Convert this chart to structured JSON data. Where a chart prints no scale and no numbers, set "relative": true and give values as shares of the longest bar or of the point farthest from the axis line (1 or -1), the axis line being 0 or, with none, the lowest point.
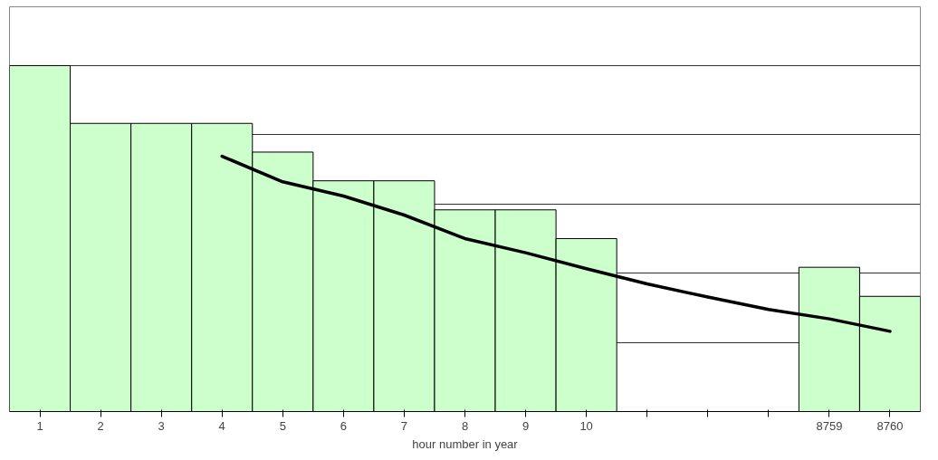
{
  "chart_data": {
    "type": "bar",
    "relative": true,
    "xlabel": "hour number in year",
    "categories": [
      "1",
      "2",
      "3",
      "4",
      "5",
      "6",
      "7",
      "8",
      "9",
      "10",
      null,
      null,
      null,
      "8759",
      "8760"
    ],
    "series": [
      {
        "color": "#ccffcc",
        "values": [
          1,
          0.833,
          0.833,
          0.833,
          0.75,
          0.667,
          0.667,
          0.583,
          0.583,
          0.5,
          null,
          null,
          null,
          0.417,
          0.333
        ]
      },
      {
        "type": "line",
        "color": "#000000",
        "values": [
          null,
          null,
          null,
          0.738,
          0.664,
          0.623,
          0.568,
          0.5,
          0.459,
          0.413,
          0.369,
          0.331,
          0.295,
          0.268,
          0.232
        ]
      }
    ],
    "grid": "y"
  }
}
